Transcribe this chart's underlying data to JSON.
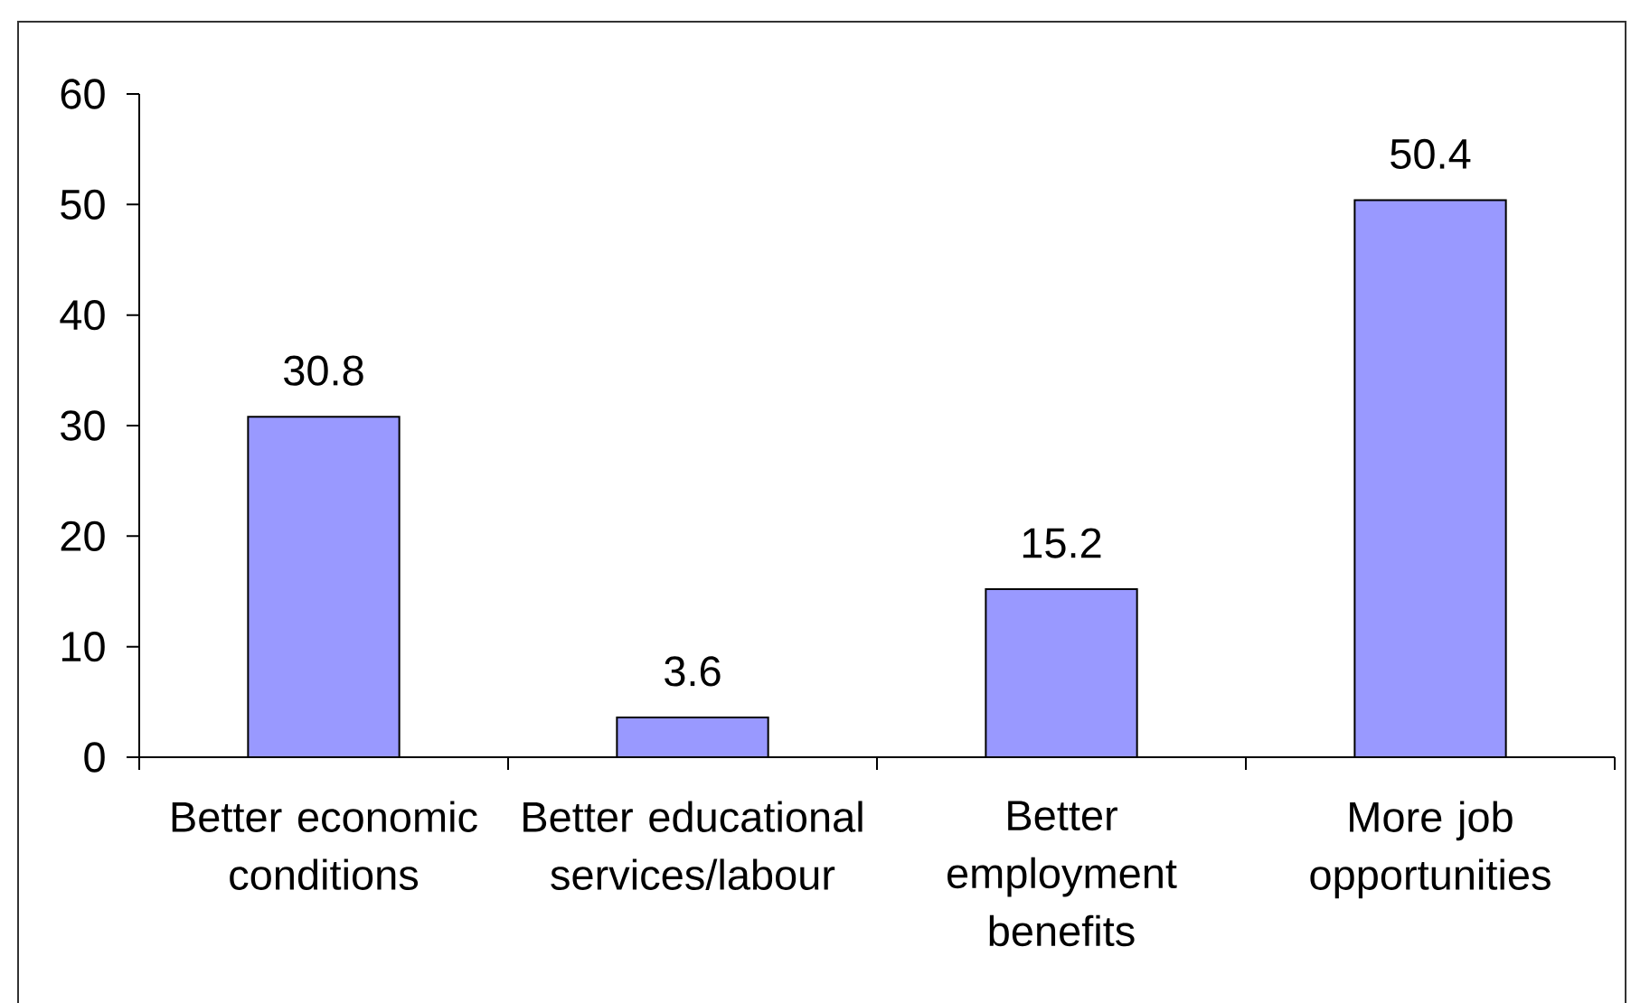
{
  "chart_data": {
    "type": "bar",
    "categories": [
      "Better economic conditions",
      "Better educational services/labour",
      "Better employment benefits",
      "More job opportunities"
    ],
    "values": [
      30.8,
      3.6,
      15.2,
      50.4
    ],
    "color": "#9999ff",
    "data_labels": true,
    "ylim": [
      0,
      60
    ],
    "yticks": [
      0,
      10,
      20,
      30,
      40,
      50,
      60
    ]
  }
}
